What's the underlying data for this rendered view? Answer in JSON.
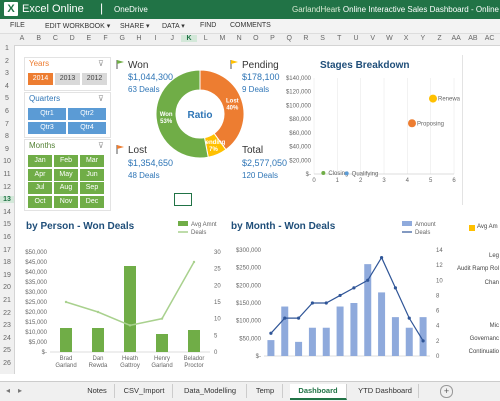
{
  "titlebar": {
    "logo": "X",
    "app_name": "Excel Online",
    "separator": "|",
    "location": "OneDrive",
    "user": "GarlandHeart",
    "doc_title": "- Online Interactive Sales Dashboard - Online"
  },
  "menu": [
    "FILE",
    "EDIT WORKBOOK ▾",
    "SHARE ▾",
    "DATA ▾",
    "FIND",
    "COMMENTS"
  ],
  "columns": [
    "A",
    "B",
    "C",
    "D",
    "E",
    "F",
    "G",
    "H",
    "I",
    "J",
    "K",
    "L",
    "M",
    "N",
    "O",
    "P",
    "Q",
    "R",
    "S",
    "T",
    "U",
    "V",
    "W",
    "X",
    "Y",
    "Z",
    "AA",
    "AB",
    "AC"
  ],
  "selected_column": "K",
  "rows": [
    "1",
    "2",
    "3",
    "4",
    "5",
    "6",
    "7",
    "8",
    "9",
    "10",
    "11",
    "12",
    "13",
    "14",
    "15",
    "16",
    "17",
    "18",
    "19",
    "20",
    "21",
    "22",
    "23",
    "24",
    "25",
    "26"
  ],
  "selected_row": "13",
  "slicers": {
    "years": {
      "title": "Years",
      "items": [
        "2014",
        "2013",
        "2012"
      ]
    },
    "quarters": {
      "title": "Quarters",
      "items": [
        "Qtr1",
        "Qtr2",
        "Qtr3",
        "Qtr4"
      ]
    },
    "months": {
      "title": "Months",
      "items": [
        "Jan",
        "Feb",
        "Mar",
        "Apr",
        "May",
        "Jun",
        "Jul",
        "Aug",
        "Sep",
        "Oct",
        "Nov",
        "Dec"
      ]
    }
  },
  "kpis": {
    "won": {
      "title": "Won",
      "value": "$1,044,300",
      "sub": "63 Deals"
    },
    "pending": {
      "title": "Pending",
      "value": "$178,100",
      "sub": "9 Deals"
    },
    "lost": {
      "title": "Lost",
      "value": "$1,354,650",
      "sub": "48 Deals"
    },
    "total": {
      "title": "Total",
      "value": "$2,577,050",
      "sub": "120 Deals"
    }
  },
  "ratio": {
    "center": "Ratio",
    "segments": [
      {
        "label": "Won",
        "pct": "53%",
        "value": 53,
        "color": "#70ad47"
      },
      {
        "label": "Lost",
        "pct": "40%",
        "value": 40,
        "color": "#ed7d31"
      },
      {
        "label": "Pending",
        "pct": "7%",
        "value": 7,
        "color": "#ffc000"
      }
    ]
  },
  "colors": {
    "excel_green": "#217346",
    "slicer_orange": "#ed7d31",
    "slicer_grey": "#d9d9d9",
    "slicer_blue": "#5b9bd5",
    "slicer_green": "#70ad47",
    "kpi_blue": "#2e75b6",
    "bar_green": "#70ad47",
    "bar_blue": "#8faadc",
    "line_blue": "#2f5597"
  },
  "stages": {
    "title": "Stages Breakdown",
    "y_ticks": [
      "$140,000",
      "$120,000",
      "$100,000",
      "$80,000",
      "$60,000",
      "$40,000",
      "$20,000",
      "$-"
    ],
    "x_ticks": [
      "0",
      "1",
      "2",
      "3",
      "4",
      "5",
      "6"
    ],
    "ylim": [
      0,
      140000
    ],
    "xlim": [
      0,
      6
    ],
    "points": [
      {
        "label": "Renewal",
        "x": 5.1,
        "y": 110000,
        "color": "#ffc000",
        "r": 4
      },
      {
        "label": "Proposing",
        "x": 4.2,
        "y": 74000,
        "color": "#ed7d31",
        "r": 4
      },
      {
        "label": "Closing",
        "x": 0.4,
        "y": 1500,
        "color": "#70ad47",
        "r": 2
      },
      {
        "label": "Qualifying",
        "x": 1.4,
        "y": 1000,
        "color": "#5b9bd5",
        "r": 2
      }
    ]
  },
  "person_chart": {
    "title": "by Person - Won Deals",
    "legend": [
      "Avg Amnt",
      "Deals"
    ],
    "y_left": [
      "$50,000",
      "$45,000",
      "$40,000",
      "$35,000",
      "$30,000",
      "$25,000",
      "$20,000",
      "$15,000",
      "$10,000",
      "$5,000",
      "$-"
    ],
    "y_right": [
      "30",
      "25",
      "20",
      "15",
      "10",
      "5",
      "0"
    ],
    "categories": [
      "Brad Garland",
      "Dan Rewda",
      "Heath Gattroy",
      "Henry Garland",
      "Belador Proctor"
    ],
    "amounts": [
      12000,
      12000,
      43000,
      9000,
      11000
    ],
    "deals": [
      15,
      12,
      8,
      10,
      27
    ],
    "ylim_left": [
      0,
      50000
    ],
    "ylim_right": [
      0,
      30
    ]
  },
  "month_chart": {
    "title": "by Month - Won Deals",
    "legend": [
      "Amount",
      "Deals"
    ],
    "y_left": [
      "$300,000",
      "$250,000",
      "$200,000",
      "$150,000",
      "$100,000",
      "$50,000",
      "$-"
    ],
    "y_right": [
      "14",
      "12",
      "10",
      "8",
      "6",
      "4",
      "2",
      "0"
    ],
    "amounts": [
      45000,
      140000,
      40000,
      80000,
      80000,
      140000,
      150000,
      260000,
      180000,
      110000,
      80000,
      110000
    ],
    "deals": [
      3,
      5,
      5,
      7,
      7,
      8,
      9,
      10,
      13,
      9,
      5,
      2
    ],
    "ylim_left": [
      0,
      300000
    ],
    "ylim_right": [
      0,
      14
    ]
  },
  "right_panel": {
    "legend": "Avg Am",
    "labels": [
      "Leg",
      "Audit Ramp Rol",
      "Chan",
      "Mic",
      "Governanc",
      "Continuatio"
    ]
  },
  "sheet_tabs": [
    "Notes",
    "CSV_Import",
    "Data_Modelling",
    "Temp",
    "Dashboard",
    "YTD Dashboard"
  ],
  "active_tab": "Dashboard",
  "add_sheet": "+"
}
